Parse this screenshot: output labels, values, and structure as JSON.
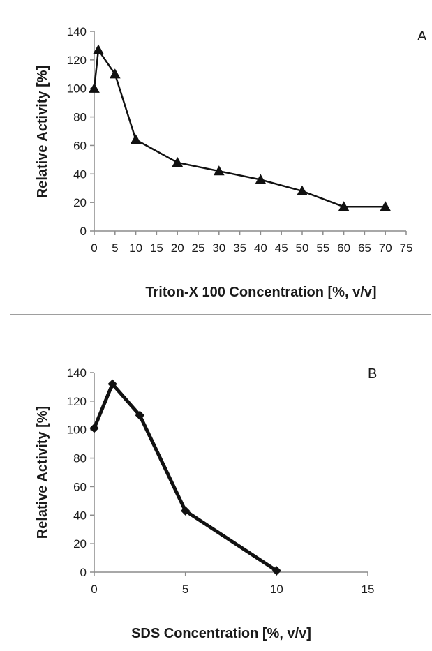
{
  "chart_data": [
    {
      "type": "line",
      "panel_label": "A",
      "title": "",
      "xlabel": "Triton-X 100 Concentration [%, v/v]",
      "ylabel": "Relative Activity [%]",
      "xlim": [
        0,
        75
      ],
      "ylim": [
        0,
        140
      ],
      "x_ticks": [
        0,
        5,
        10,
        15,
        20,
        25,
        30,
        35,
        40,
        45,
        50,
        55,
        60,
        65,
        70,
        75
      ],
      "y_ticks": [
        0,
        20,
        40,
        60,
        80,
        100,
        120,
        140
      ],
      "marker": "triangle",
      "line_color": "#111111",
      "grid": false,
      "legend": "none",
      "series": [
        {
          "x": [
            0,
            1,
            5,
            10,
            20,
            30,
            40,
            50,
            60,
            70
          ],
          "y": [
            100,
            127,
            110,
            64,
            48,
            42,
            36,
            28,
            17,
            17
          ]
        }
      ]
    },
    {
      "type": "line",
      "panel_label": "B",
      "title": "",
      "xlabel": "SDS Concentration [%, v/v]",
      "ylabel": "Relative Activity [%]",
      "xlim": [
        0,
        15
      ],
      "ylim": [
        0,
        140
      ],
      "x_ticks": [
        0,
        5,
        10,
        15
      ],
      "y_ticks": [
        0,
        20,
        40,
        60,
        80,
        100,
        120,
        140
      ],
      "marker": "diamond",
      "line_color": "#111111",
      "grid": false,
      "legend": "none",
      "series": [
        {
          "x": [
            0,
            1,
            2.5,
            5,
            10
          ],
          "y": [
            101,
            132,
            110,
            43,
            1
          ]
        }
      ]
    }
  ]
}
